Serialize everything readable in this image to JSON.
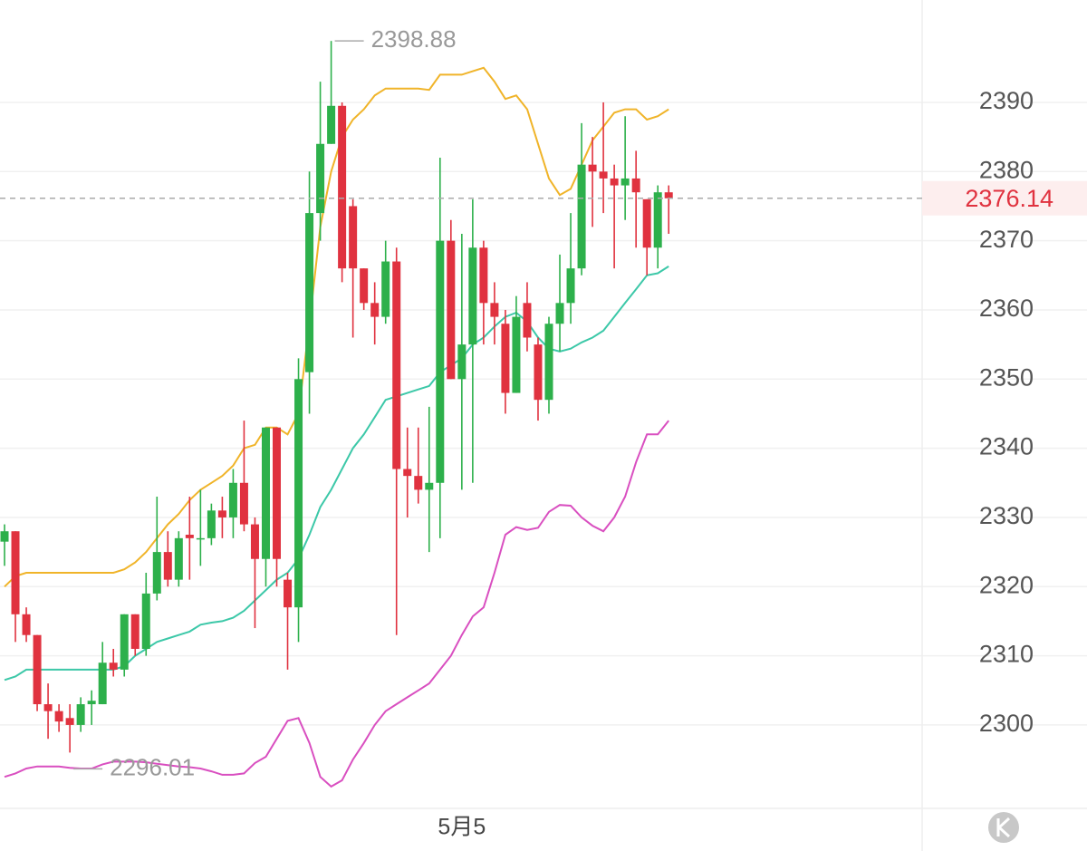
{
  "chart_data": {
    "type": "candlestick",
    "categories": [
      null,
      null,
      null,
      null,
      null,
      null,
      null,
      null,
      null,
      null,
      null,
      null,
      null,
      null,
      null,
      null,
      null,
      null,
      null,
      null,
      null,
      null,
      null,
      null,
      null,
      null,
      null,
      null,
      null,
      null,
      null,
      null,
      null,
      null,
      null,
      null,
      null,
      null,
      null,
      null,
      null,
      null,
      "5月5",
      null,
      null,
      null,
      null,
      null,
      null,
      null,
      null,
      null,
      null,
      null,
      null,
      null,
      null,
      null,
      null,
      null,
      null,
      null
    ],
    "candles": {
      "open": [
        2326.5,
        2328,
        2316,
        2313,
        2303,
        2302,
        2301,
        2300,
        2303,
        2303,
        2309,
        2308,
        2316,
        2311,
        2319,
        2325,
        2321,
        2327.5,
        2327,
        2327,
        2331,
        2330,
        2335,
        2329,
        2324,
        2343,
        2321,
        2317,
        2351,
        2374,
        2384,
        2389.5,
        2375,
        2366,
        2361,
        2359,
        2367,
        2337,
        2336,
        2334,
        2335,
        2370,
        2350,
        2355,
        2369,
        2361,
        2358,
        2348,
        2361,
        2355,
        2347,
        2358,
        2361,
        2366,
        2381,
        2380,
        2379,
        2378,
        2379,
        2376,
        2369,
        2377
      ],
      "high": [
        2329,
        2328,
        2317,
        2313,
        2306,
        2303,
        2303,
        2304,
        2305,
        2312,
        2311,
        2316,
        2316,
        2322,
        2333,
        2328,
        2328,
        2333,
        2334,
        2332,
        2333,
        2337,
        2344,
        2330,
        2343,
        2343,
        2322,
        2353,
        2380,
        2393,
        2398.88,
        2390,
        2376,
        2366,
        2364,
        2370,
        2369,
        2343,
        2343,
        2346,
        2382,
        2373,
        2371,
        2376,
        2370,
        2364,
        2360,
        2362,
        2364,
        2356,
        2359,
        2368,
        2374,
        2387,
        2385,
        2390,
        2381,
        2388,
        2383,
        2376,
        2378,
        2378
      ],
      "low": [
        2323,
        2312,
        2312,
        2302,
        2298,
        2299,
        2296.01,
        2299,
        2300,
        2303,
        2307,
        2307,
        2310,
        2310,
        2318,
        2320,
        2320,
        2321,
        2323,
        2326,
        2327,
        2327,
        2328,
        2314,
        2320,
        2320,
        2308,
        2312,
        2345,
        2370,
        2384,
        2364,
        2356,
        2360,
        2355,
        2358,
        2313,
        2330,
        2332,
        2325,
        2327,
        2350,
        2334,
        2335,
        2355,
        2355,
        2345,
        2348,
        2354,
        2344,
        2345,
        2354,
        2358,
        2365,
        2372,
        2374,
        2366,
        2373,
        2369,
        2365,
        2366,
        2371
      ],
      "close": [
        2328,
        2316,
        2313,
        2303,
        2302,
        2300.5,
        2300,
        2303,
        2303.5,
        2309,
        2308,
        2316,
        2311,
        2319,
        2325,
        2321,
        2327,
        2327,
        2327,
        2331,
        2330,
        2335,
        2329,
        2324,
        2343,
        2324,
        2317,
        2350,
        2374,
        2384,
        2389.5,
        2366,
        2366,
        2361,
        2359,
        2367,
        2337,
        2336,
        2334,
        2335,
        2370,
        2350,
        2355,
        2369,
        2361,
        2359,
        2348,
        2359,
        2356,
        2347,
        2358,
        2361,
        2366,
        2381,
        2380,
        2379,
        2378,
        2379,
        2377,
        2369,
        2377,
        2376.14
      ]
    },
    "up_color": "#2db04b",
    "down_color": "#e0323f",
    "lines": [
      {
        "color": "#f0b429",
        "values": [
          2320,
          2321.5,
          2322,
          2322,
          2322,
          2322,
          2322,
          2322,
          2322,
          2322,
          2322,
          2322.5,
          2323.5,
          2325,
          2327,
          2329,
          2330.5,
          2332.5,
          2334,
          2335,
          2336,
          2337.5,
          2340,
          2340.5,
          2343,
          2343,
          2342,
          2345,
          2358,
          2372,
          2380,
          2385,
          2387.5,
          2389,
          2391,
          2392,
          2392,
          2392,
          2392,
          2391.8,
          2394,
          2394,
          2394,
          2394.5,
          2395,
          2393,
          2390.5,
          2391,
          2389,
          2384,
          2379,
          2376.6,
          2377.5,
          2381,
          2384.5,
          2386.5,
          2388.5,
          2389,
          2389,
          2387.5,
          2388,
          2389
        ]
      },
      {
        "color": "#3cc8a8",
        "values": [
          2306.5,
          2307,
          2308,
          2308,
          2308,
          2308,
          2308,
          2308,
          2308,
          2308,
          2308,
          2308.5,
          2310,
          2311,
          2312,
          2312.5,
          2313,
          2313.5,
          2314.5,
          2314.8,
          2315,
          2315.5,
          2316.5,
          2318,
          2319.5,
          2321,
          2322,
          2324,
          2327.5,
          2331.5,
          2334,
          2337,
          2340,
          2342,
          2344.5,
          2347,
          2347.5,
          2348,
          2348.5,
          2349,
          2351,
          2352,
          2353,
          2355,
          2356,
          2357.6,
          2359,
          2359.6,
          2358.3,
          2356,
          2354.4,
          2354,
          2354.4,
          2355.3,
          2356,
          2357,
          2359,
          2361,
          2363,
          2365,
          2365.3,
          2366.3
        ]
      },
      {
        "color": "#d94fc0",
        "values": [
          2292.5,
          2293,
          2293.7,
          2294,
          2294,
          2294,
          2293.8,
          2293.7,
          2293.7,
          2294.3,
          2294.7,
          2294.7,
          2294.7,
          2294.6,
          2294.4,
          2294.2,
          2294,
          2293.9,
          2293.7,
          2293.3,
          2292.8,
          2292.8,
          2293,
          2294.5,
          2295.4,
          2298,
          2300.6,
          2301,
          2297.4,
          2292.5,
          2291.1,
          2292,
          2295,
          2297.4,
          2300,
          2302,
          2303,
          2304,
          2305,
          2306,
          2308,
          2310,
          2313,
          2315.7,
          2317,
          2322,
          2327.5,
          2328.6,
          2328.2,
          2328.5,
          2330.8,
          2331.8,
          2331.7,
          2330,
          2328.8,
          2328,
          2330,
          2333,
          2338,
          2342,
          2342,
          2344
        ]
      }
    ],
    "ylim": [
      2288.2,
      2404.8
    ],
    "yticks": [
      2300,
      2310,
      2320,
      2330,
      2340,
      2350,
      2360,
      2370,
      2380,
      2390
    ],
    "grid": true
  }
}
